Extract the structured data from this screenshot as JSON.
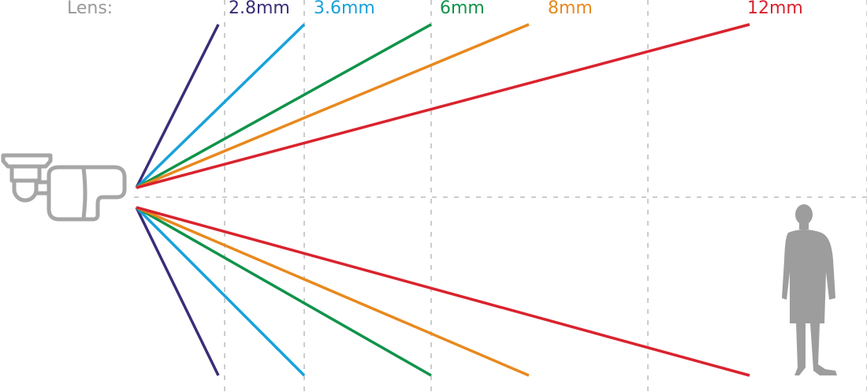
{
  "legend_title": "Lens:",
  "lenses": [
    {
      "label": "2.8mm",
      "color": "#3b2d78"
    },
    {
      "label": "3.6mm",
      "color": "#17a2db"
    },
    {
      "label": "6mm",
      "color": "#10934a"
    },
    {
      "label": "8mm",
      "color": "#e8891e"
    },
    {
      "label": "12mm",
      "color": "#d9232e"
    }
  ],
  "colors": {
    "grid": "#cccccc",
    "camera": "#a6a6a6",
    "person": "#9d9d9d"
  },
  "icons": {
    "camera": "bullet-camera-icon",
    "person": "person-silhouette-icon"
  }
}
